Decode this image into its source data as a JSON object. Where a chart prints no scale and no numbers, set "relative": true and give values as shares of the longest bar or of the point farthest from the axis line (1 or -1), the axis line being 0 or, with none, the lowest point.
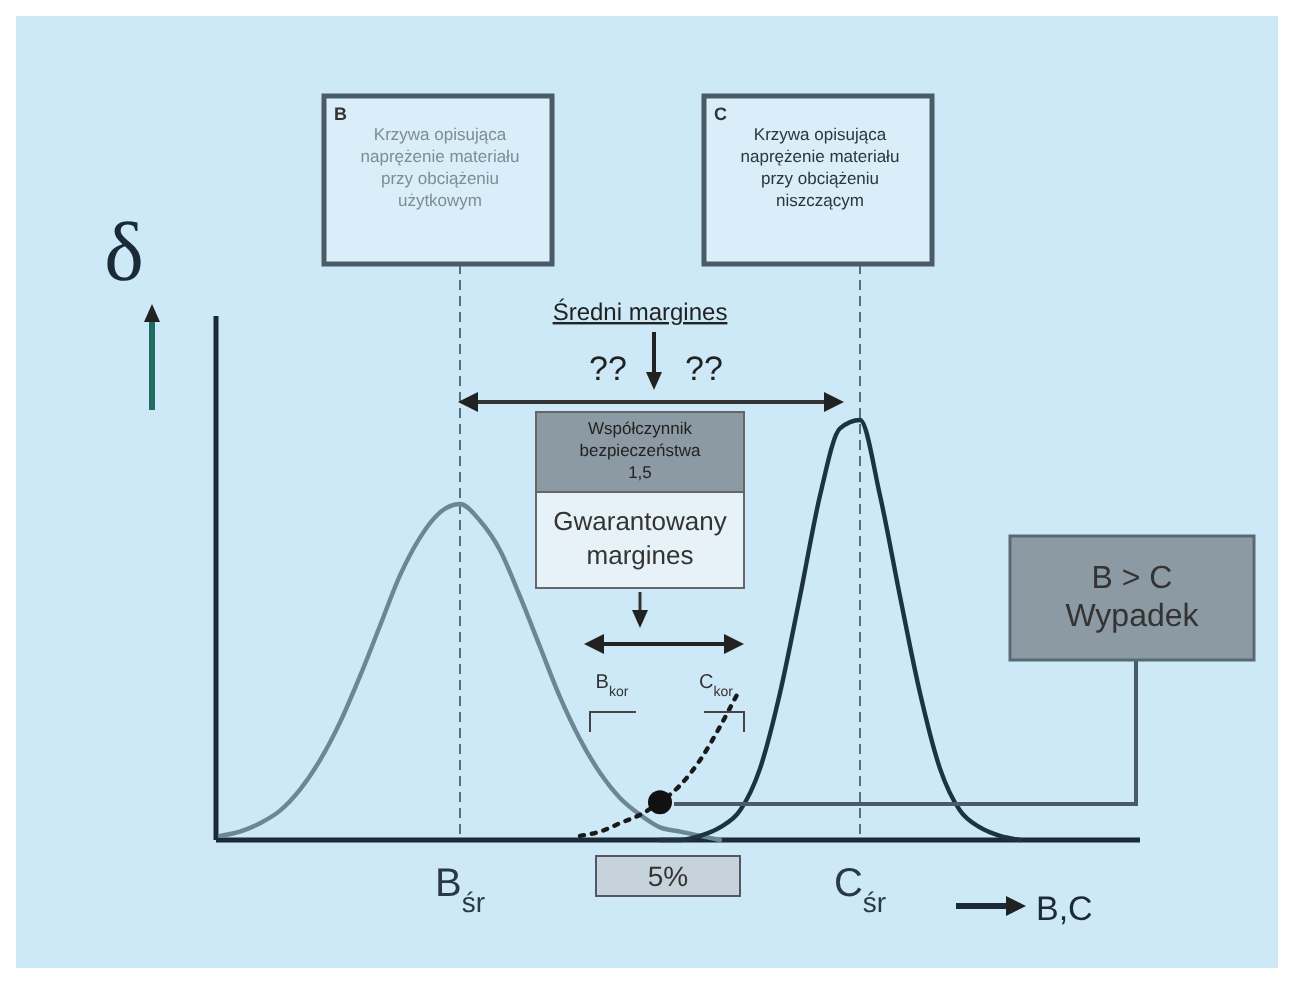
{
  "chart_data": {
    "type": "line",
    "relative": true,
    "ylabel": "δ",
    "xlabel": "B,C",
    "categories": [
      null,
      null,
      null,
      null,
      null,
      null,
      null,
      null,
      null,
      null,
      null,
      null,
      "B$_{śr}$",
      null,
      null,
      null,
      null,
      null,
      null,
      null,
      null,
      null,
      null,
      null,
      null,
      null,
      null,
      null,
      null,
      null,
      null,
      null,
      "C$_{śr}$",
      null,
      null,
      null,
      null,
      null,
      null,
      null,
      null,
      null,
      null,
      null,
      null,
      null,
      null
    ],
    "series": [
      {
        "color": "#6b8796",
        "values": [
          0.01,
          0.02,
          0.04,
          0.07,
          0.12,
          0.19,
          0.28,
          0.39,
          0.51,
          0.63,
          0.72,
          0.78,
          0.8,
          0.76,
          0.69,
          0.58,
          0.46,
          0.34,
          0.24,
          0.16,
          0.1,
          0.06,
          0.03,
          0.02,
          0.01,
          0,
          null,
          null,
          null,
          null,
          null,
          null,
          null,
          null,
          null,
          null,
          null,
          null,
          null,
          null,
          null,
          null,
          null,
          null,
          null,
          null,
          null
        ]
      },
      {
        "color": "#1d3344",
        "values": [
          null,
          null,
          null,
          null,
          null,
          null,
          null,
          null,
          null,
          null,
          null,
          null,
          null,
          null,
          null,
          null,
          null,
          null,
          null,
          null,
          null,
          null,
          0,
          0,
          0.01,
          0.03,
          0.07,
          0.17,
          0.35,
          0.58,
          0.82,
          0.98,
          1,
          0.82,
          0.58,
          0.35,
          0.17,
          0.07,
          0.03,
          0.01,
          0,
          null,
          null,
          null,
          null,
          null,
          null
        ]
      },
      {
        "type": "line",
        "line_style": "dotted",
        "color": "#1a1a1a",
        "values": [
          null,
          null,
          null,
          null,
          null,
          null,
          null,
          null,
          null,
          null,
          null,
          null,
          null,
          null,
          null,
          null,
          null,
          null,
          0.01,
          0.02,
          0.04,
          0.06,
          0.09,
          0.13,
          0.19,
          0.27,
          0.36,
          null,
          null,
          null,
          null,
          null,
          null,
          null,
          null,
          null,
          null,
          null,
          null,
          null,
          null,
          null,
          null,
          null,
          null,
          null,
          null
        ]
      },
      {
        "type": "scatter",
        "marker": "circle",
        "color": "#111111",
        "values": [
          null,
          null,
          null,
          null,
          null,
          null,
          null,
          null,
          null,
          null,
          null,
          null,
          null,
          null,
          null,
          null,
          null,
          null,
          null,
          null,
          null,
          null,
          0.09,
          null,
          null,
          null,
          null,
          null,
          null,
          null,
          null,
          null,
          null,
          null,
          null,
          null,
          null,
          null,
          null,
          null,
          null,
          null,
          null,
          null,
          null,
          null,
          null
        ]
      }
    ],
    "ref_lines": [
      {
        "axis": "x",
        "value": "B$_{śr}$",
        "line_style": "dashed",
        "color": "#55707f"
      },
      {
        "axis": "x",
        "value": "C$_{śr}$",
        "line_style": "dashed",
        "color": "#55707f"
      }
    ],
    "annotations": [
      "B",
      "Krzywa opisująca naprężenie materiału przy obciążeniu użytkowym",
      "C",
      "Krzywa opisująca naprężenie materiału przy obciążeniu niszczącym",
      "Średni margines",
      "??",
      "??",
      "Współczynnik bezpieczeństwa 1,5",
      "Gwarantowany margines",
      "B$_{kor}$",
      "C$_{kor}$",
      "5%",
      "B > C Wypadek"
    ]
  }
}
